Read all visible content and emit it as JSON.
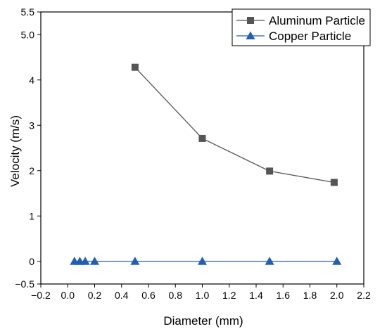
{
  "chart_data": {
    "type": "line",
    "xlabel": "Diameter (mm)",
    "ylabel": "Velocity (m/s)",
    "xlim": [
      -0.2,
      2.2
    ],
    "ylim": [
      -0.5,
      5.5
    ],
    "x_ticks": [
      -0.2,
      0.0,
      0.2,
      0.4,
      0.6,
      0.8,
      1.0,
      1.2,
      1.4,
      1.6,
      1.8,
      2.0,
      2.2
    ],
    "x_tick_labels": [
      "−0.2",
      "0.0",
      "0.2",
      "0.4",
      "0.6",
      "0.8",
      "1.0",
      "1.2",
      "1.4",
      "1.6",
      "1.8",
      "2.0",
      "2.2"
    ],
    "y_ticks": [
      -0.5,
      0,
      1,
      2,
      3,
      4,
      5.0,
      5.5
    ],
    "y_tick_labels": [
      "−0.5",
      "0",
      "1",
      "2",
      "3",
      "4",
      "5.0",
      "5.5"
    ],
    "grid": false,
    "legend_position": "top-right",
    "series": [
      {
        "name": "Aluminum Particle",
        "color": "#555555",
        "marker": "square",
        "x": [
          0.5,
          1.0,
          1.5,
          1.98
        ],
        "y": [
          4.28,
          2.71,
          1.99,
          1.74
        ]
      },
      {
        "name": "Copper Particle",
        "color": "#1f5fb8",
        "marker": "triangle",
        "x": [
          0.05,
          0.09,
          0.13,
          0.2,
          0.5,
          1.0,
          1.5,
          2.0
        ],
        "y": [
          0,
          0,
          0,
          0,
          0,
          0,
          0,
          0
        ]
      }
    ]
  }
}
